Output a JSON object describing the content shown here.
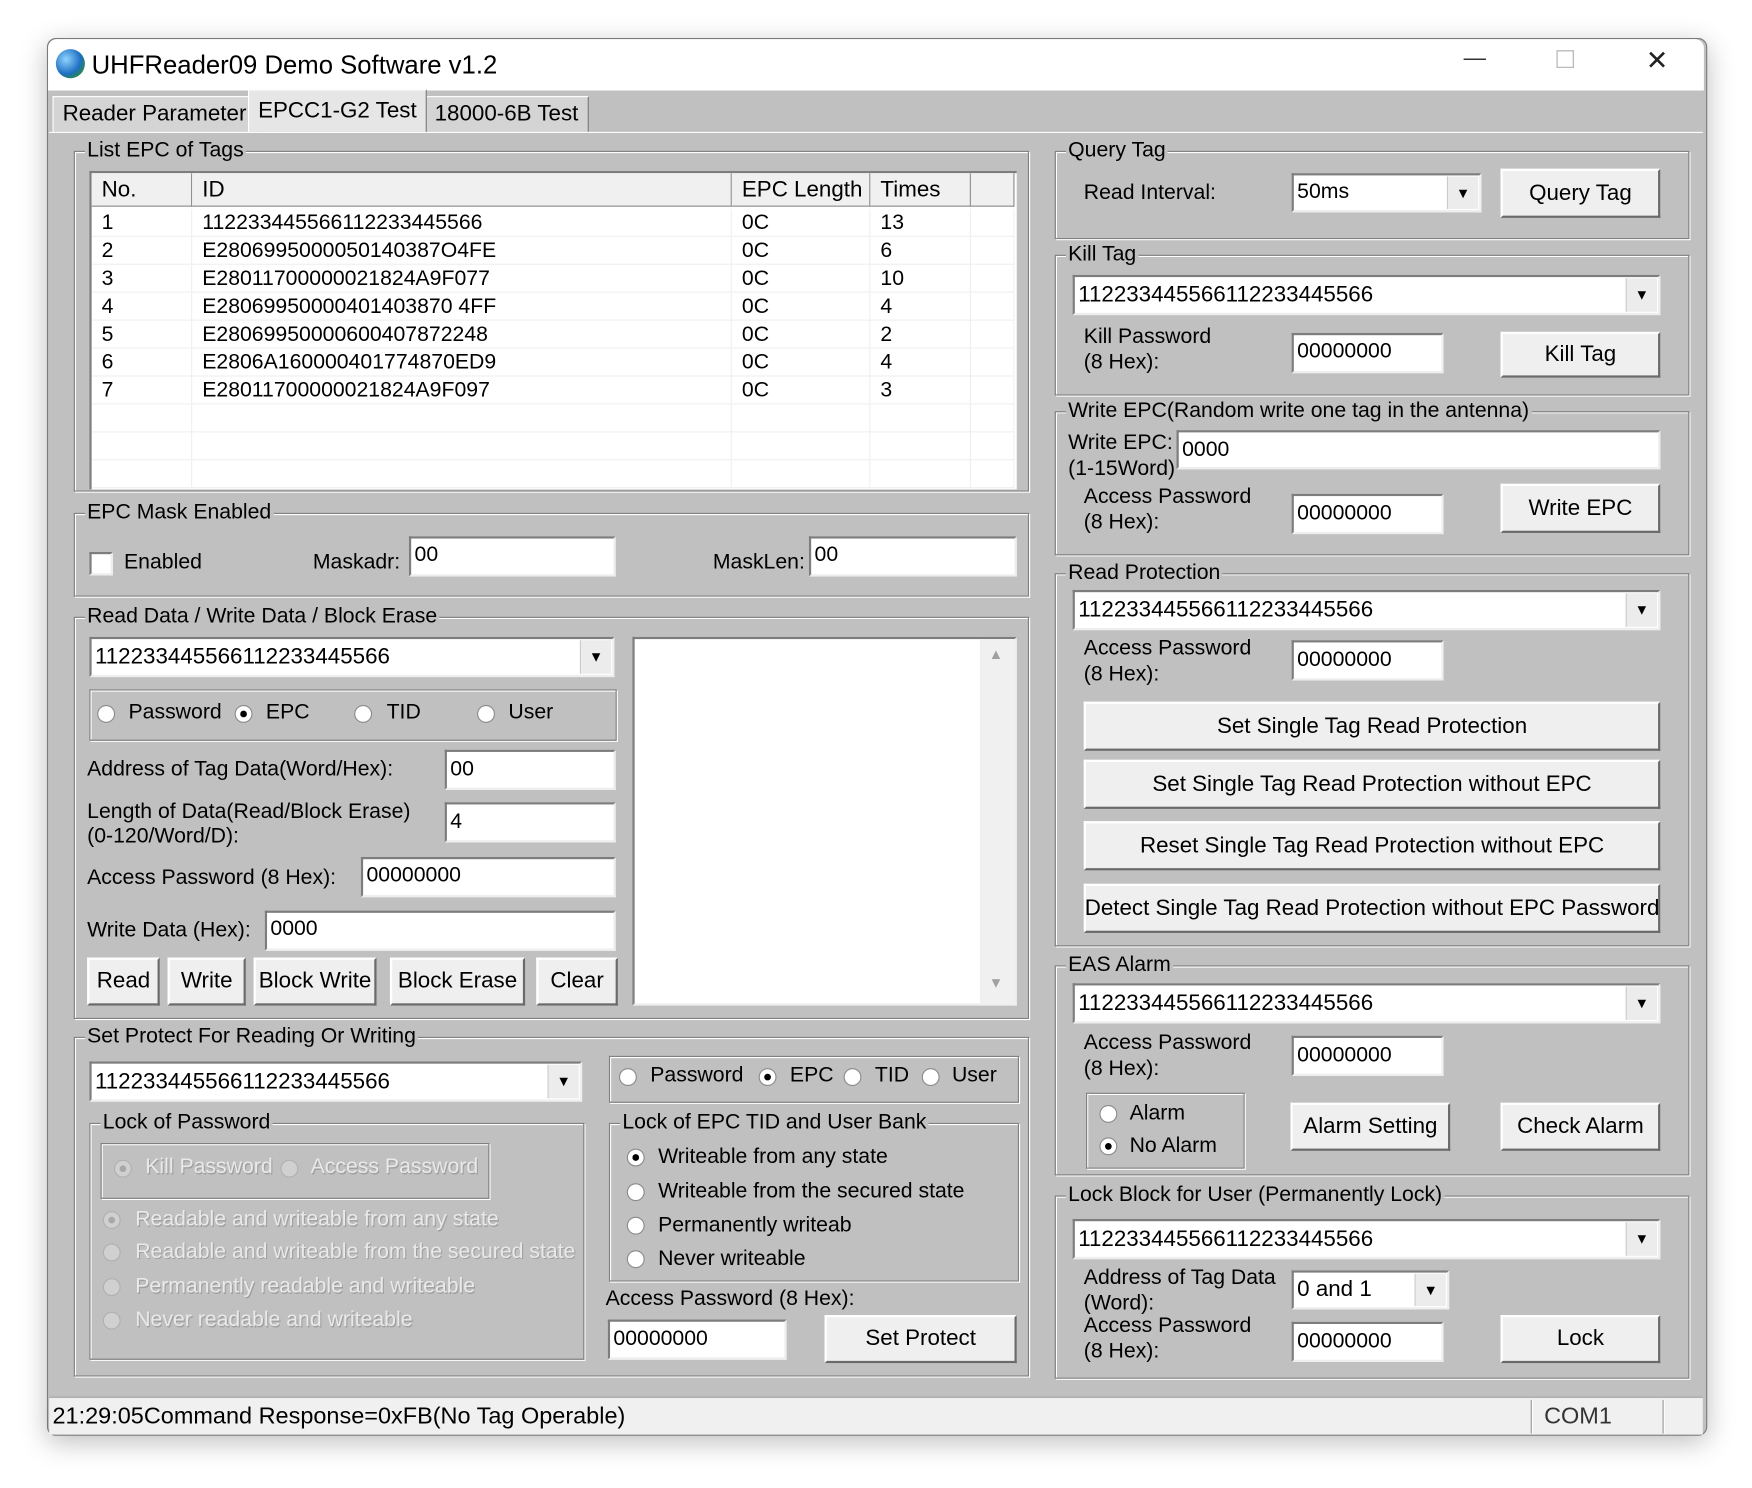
{
  "window": {
    "title": "UHFReader09 Demo Software v1.2",
    "minimize": "—",
    "maximize": "☐",
    "close": "✕"
  },
  "tabs": [
    {
      "label": "Reader Parameter",
      "selected": false
    },
    {
      "label": "EPCC1-G2 Test",
      "selected": true
    },
    {
      "label": "18000-6B Test",
      "selected": false
    }
  ],
  "list_epc": {
    "title": "List EPC of Tags",
    "columns": [
      "No.",
      "ID",
      "EPC Length",
      "Times"
    ],
    "rows": [
      [
        "1",
        "11223344556611223344556​6",
        "0C",
        "13"
      ],
      [
        "2",
        "E2806995000050140387O4FE",
        "0C",
        "6"
      ],
      [
        "3",
        "E28011700000021824A9F077",
        "0C",
        "10"
      ],
      [
        "4",
        "E28069950000401403870 4FF",
        "0C",
        "4"
      ],
      [
        "5",
        "E28069950000600407872248",
        "0C",
        "2"
      ],
      [
        "6",
        "E2806A160000401774870ED9",
        "0C",
        "4"
      ],
      [
        "7",
        "E28011700000021824A9F097",
        "0C",
        "3"
      ]
    ]
  },
  "mask": {
    "title": "EPC Mask Enabled",
    "enabled_label": "Enabled",
    "enabled": false,
    "maskadr_label": "Maskadr:",
    "maskadr": "00",
    "masklen_label": "MaskLen:",
    "masklen": "00"
  },
  "rw": {
    "title": "Read Data / Write Data / Block Erase",
    "epc_select": "112233445566112233445566",
    "banks": [
      "Password",
      "EPC",
      "TID",
      "User"
    ],
    "selected_bank": "EPC",
    "addr_label": "Address of Tag Data(Word/Hex):",
    "addr": "00",
    "len_label_1": "Length of Data(Read/Block Erase)",
    "len_label_2": "(0-120/Word/D):",
    "len": "4",
    "pwd_label": "Access Password (8 Hex):",
    "pwd": "00000000",
    "write_label": "Write Data (Hex):",
    "write_data": "0000",
    "buttons": [
      "Read",
      "Write",
      "Block Write",
      "Block Erase",
      "Clear"
    ],
    "output": ""
  },
  "protect": {
    "title": "Set Protect For Reading Or Writing",
    "epc_select": "112233445566112233445566",
    "banks": [
      "Password",
      "EPC",
      "TID",
      "User"
    ],
    "selected_bank": "EPC",
    "lock_password": {
      "title": "Lock of Password",
      "targets": [
        "Kill Password",
        "Access Password"
      ],
      "selected_target": "Kill Password",
      "options": [
        "Readable and  writeable from any state",
        "Readable and writeable from the secured state",
        "Permanently readable and writeable",
        "Never readable and writeable"
      ],
      "selected_option": 0,
      "disabled": true
    },
    "lock_bank": {
      "title": "Lock of EPC TID and User Bank",
      "options": [
        "Writeable from any state",
        "Writeable from the secured state",
        "Permanently writeab",
        "Never writeable"
      ],
      "selected_option": 0
    },
    "pwd_label": "Access Password (8 Hex):",
    "pwd": "00000000",
    "button": "Set Protect"
  },
  "query": {
    "title": "Query Tag",
    "interval_label": "Read Interval:",
    "interval": "50ms",
    "button": "Query Tag"
  },
  "kill": {
    "title": "Kill Tag",
    "epc_select": "112233445566112233445566",
    "pwd_label_1": "Kill Password",
    "pwd_label_2": "(8 Hex):",
    "pwd": "00000000",
    "button": "Kill Tag"
  },
  "write_epc": {
    "title": "Write EPC(Random write one tag in the antenna)",
    "epc_label_1": "Write EPC:",
    "epc_label_2": "(1-15Word)",
    "epc": "0000",
    "pwd_label_1": "Access Password",
    "pwd_label_2": "(8 Hex):",
    "pwd": "00000000",
    "button": "Write EPC"
  },
  "read_protect": {
    "title": "Read Protection",
    "epc_select": "112233445566112233445566",
    "pwd_label_1": "Access Password",
    "pwd_label_2": "(8 Hex):",
    "pwd": "00000000",
    "buttons": [
      "Set Single Tag Read Protection",
      "Set Single Tag Read Protection without EPC",
      "Reset Single Tag Read Protection without EPC",
      "Detect Single Tag Read Protection without EPC Password"
    ]
  },
  "eas": {
    "title": "EAS Alarm",
    "epc_select": "112233445566112233445566",
    "pwd_label_1": "Access Password",
    "pwd_label_2": "(8 Hex):",
    "pwd": "00000000",
    "options": [
      "Alarm",
      "No Alarm"
    ],
    "selected_option": "No Alarm",
    "alarm_setting_button": "Alarm Setting",
    "check_alarm_button": "Check Alarm"
  },
  "lock_user": {
    "title": "Lock Block for User (Permanently Lock)",
    "epc_select": "112233445566112233445566",
    "addr_label_1": "Address of Tag Data",
    "addr_label_2": "(Word):",
    "addr": "0 and 1",
    "pwd_label_1": "Access Password",
    "pwd_label_2": "(8 Hex):",
    "pwd": "00000000",
    "button": "Lock"
  },
  "status": {
    "message": "21:29:05Command Response=0xFB(No Tag Operable)",
    "port": "COM1"
  }
}
